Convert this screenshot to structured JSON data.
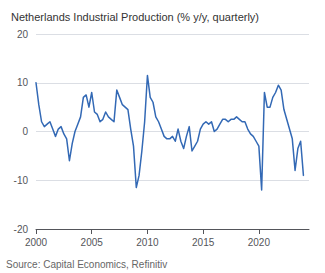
{
  "chart_data": {
    "type": "line",
    "title": "Netherlands Industrial Production (% y/y, quarterly)",
    "annotations": [
      "Source: Capital Economics, Refinitiv"
    ],
    "color": "#3369b5",
    "grid": true,
    "xlim": [
      2000.0,
      2024.5
    ],
    "xticks": [
      2000,
      2005,
      2010,
      2015,
      2020
    ],
    "ylim": [
      -20,
      20
    ],
    "yticks": [
      -20,
      -10,
      0,
      10,
      20
    ],
    "x": [
      2000.0,
      2000.25,
      2000.5,
      2000.75,
      2001.0,
      2001.25,
      2001.5,
      2001.75,
      2002.0,
      2002.25,
      2002.5,
      2002.75,
      2003.0,
      2003.25,
      2003.5,
      2003.75,
      2004.0,
      2004.25,
      2004.5,
      2004.75,
      2005.0,
      2005.25,
      2005.5,
      2005.75,
      2006.0,
      2006.25,
      2006.5,
      2006.75,
      2007.0,
      2007.25,
      2007.5,
      2007.75,
      2008.0,
      2008.25,
      2008.5,
      2008.75,
      2009.0,
      2009.25,
      2009.5,
      2009.75,
      2010.0,
      2010.25,
      2010.5,
      2010.75,
      2011.0,
      2011.25,
      2011.5,
      2011.75,
      2012.0,
      2012.25,
      2012.5,
      2012.75,
      2013.0,
      2013.25,
      2013.5,
      2013.75,
      2014.0,
      2014.25,
      2014.5,
      2014.75,
      2015.0,
      2015.25,
      2015.5,
      2015.75,
      2016.0,
      2016.25,
      2016.5,
      2016.75,
      2017.0,
      2017.25,
      2017.5,
      2017.75,
      2018.0,
      2018.25,
      2018.5,
      2018.75,
      2019.0,
      2019.25,
      2019.5,
      2019.75,
      2020.0,
      2020.25,
      2020.5,
      2020.75,
      2021.0,
      2021.25,
      2021.5,
      2021.75,
      2022.0,
      2022.25,
      2022.5,
      2022.75,
      2023.0,
      2023.25,
      2023.5,
      2023.75,
      2024.0
    ],
    "values": [
      10.0,
      5.5,
      2.0,
      1.0,
      1.5,
      2.0,
      0.5,
      -1.0,
      0.5,
      1.0,
      -0.5,
      -1.5,
      -6.0,
      -2.5,
      0.0,
      1.5,
      3.0,
      7.0,
      7.5,
      5.0,
      8.0,
      4.0,
      3.5,
      2.0,
      2.5,
      4.0,
      3.0,
      2.5,
      2.0,
      8.5,
      7.0,
      5.5,
      5.0,
      4.5,
      0.5,
      -3.0,
      -11.5,
      -9.0,
      -4.0,
      2.0,
      11.5,
      7.0,
      6.0,
      3.0,
      2.0,
      0.5,
      -1.0,
      -1.5,
      -1.5,
      -1.0,
      -2.0,
      0.5,
      -2.0,
      -3.5,
      -1.0,
      1.0,
      -4.0,
      -3.0,
      -2.0,
      0.5,
      1.5,
      2.0,
      1.5,
      2.0,
      0.0,
      0.5,
      1.5,
      2.5,
      2.5,
      2.0,
      2.5,
      2.5,
      3.0,
      2.5,
      2.0,
      2.0,
      0.5,
      -0.5,
      -1.0,
      -2.0,
      -3.0,
      -12.0,
      8.0,
      5.0,
      5.0,
      7.0,
      8.0,
      9.5,
      8.5,
      4.5,
      2.5,
      0.5,
      -1.5,
      -8.0,
      -3.5,
      -2.0,
      -9.0
    ]
  }
}
